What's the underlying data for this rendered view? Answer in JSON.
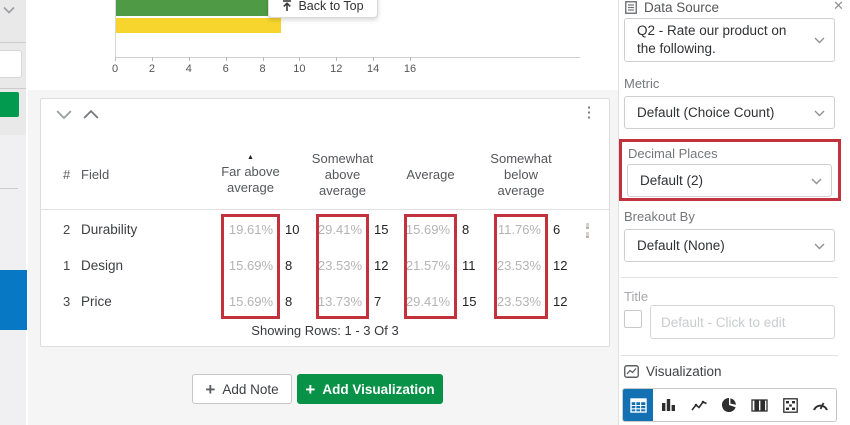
{
  "chart_data": {
    "type": "bar",
    "orientation": "horizontal",
    "series": [
      {
        "name": "bar-green",
        "value": 8.3,
        "color": "#4f9b45"
      },
      {
        "name": "bar-yellow",
        "value": 9.0,
        "color": "#f7d52c"
      }
    ],
    "x_ticks": [
      0,
      2,
      4,
      6,
      8,
      10,
      12,
      14,
      16
    ],
    "xlim": [
      0,
      16
    ],
    "title": "",
    "xlabel": "",
    "ylabel": ""
  },
  "back_to_top": {
    "label": "Back to Top"
  },
  "table": {
    "columns": {
      "num": "#",
      "field": "Field",
      "c1": "Far above average",
      "c2": "Somewhat above average",
      "c3": "Average",
      "c4": "Somewhat below average"
    },
    "sort_icon": "▲",
    "kebab_icon": "⋮",
    "rows": [
      {
        "num": "2",
        "field": "Durability",
        "p1": "19.61%",
        "n1": "10",
        "p2": "29.41%",
        "n2": "15",
        "p3": "15.69%",
        "n3": "8",
        "p4": "11.76%",
        "n4": "6"
      },
      {
        "num": "1",
        "field": "Design",
        "p1": "15.69%",
        "n1": "8",
        "p2": "23.53%",
        "n2": "12",
        "p3": "21.57%",
        "n3": "11",
        "p4": "23.53%",
        "n4": "12"
      },
      {
        "num": "3",
        "field": "Price",
        "p1": "15.69%",
        "n1": "8",
        "p2": "13.73%",
        "n2": "7",
        "p3": "29.41%",
        "n3": "15",
        "p4": "23.53%",
        "n4": "12"
      }
    ],
    "footer": "Showing Rows: 1 - 3 Of 3"
  },
  "actions": {
    "add_note": "Add Note",
    "add_visualization": "Add Visualization",
    "plus": "+"
  },
  "panel": {
    "data_source": {
      "label": "Data Source",
      "value": "Q2 - Rate our product on the following.",
      "close_icon": "✕"
    },
    "metric": {
      "label": "Metric",
      "value": "Default (Choice Count)"
    },
    "decimal_places": {
      "label": "Decimal Places",
      "value": "Default (2)"
    },
    "breakout_by": {
      "label": "Breakout By",
      "value": "Default (None)"
    },
    "title": {
      "label": "Title",
      "placeholder": "Default - Click to edit",
      "checkbox_checked": false
    },
    "visualization": {
      "label": "Visualization",
      "options": [
        "data-table",
        "bar-chart",
        "line-chart",
        "pie-chart",
        "breakdown-bar",
        "stats-table",
        "gauge"
      ],
      "selected": "data-table"
    }
  },
  "colors": {
    "highlight_red": "#c1323c",
    "brand_green": "#089247",
    "sidebar_green": "#019a4e",
    "sidebar_blue": "#0779c4",
    "selected_viz_blue": "#1371b3",
    "bar_green": "#4f9b45",
    "bar_yellow": "#f7d52c"
  }
}
